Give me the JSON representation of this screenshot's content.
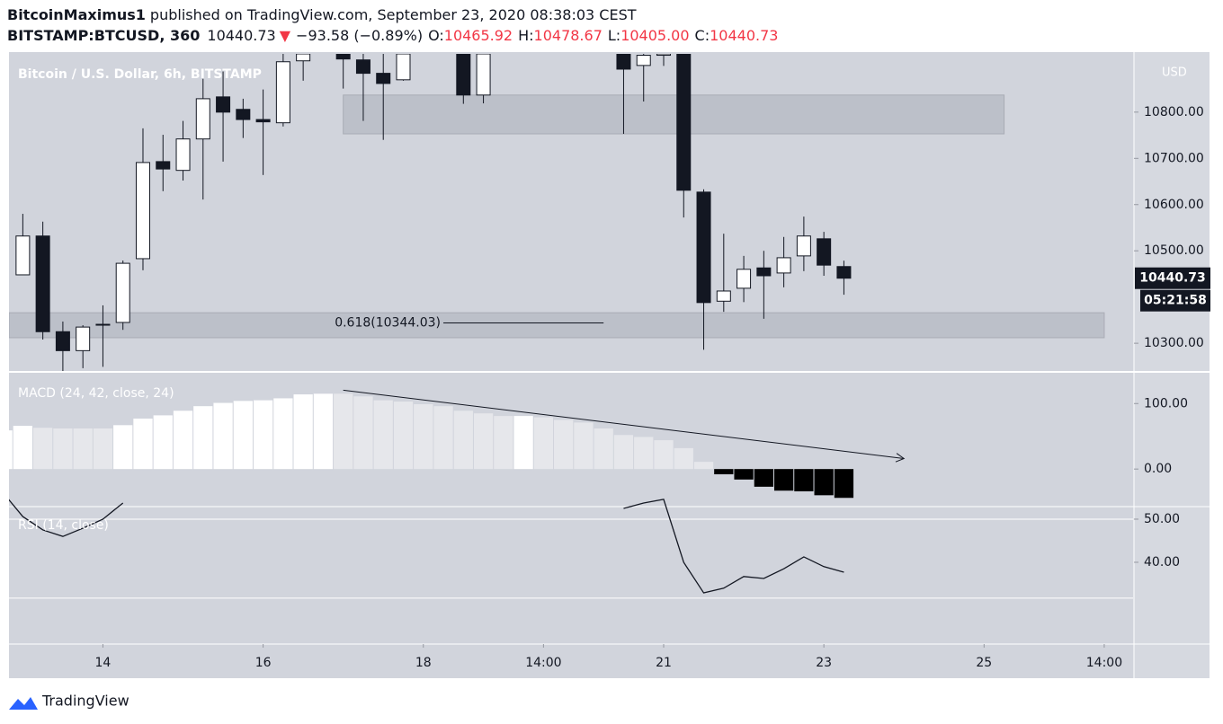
{
  "header": {
    "author": "BitcoinMaximus1",
    "published": "published on TradingView.com, September 23, 2020 08:38:03 CEST",
    "symbol": "BITSTAMP:BTCUSD, 360",
    "price": "10440.73",
    "arrow": "▼",
    "change": "−93.58 (−0.89%)",
    "quote": [
      {
        "label": "O:",
        "value": "10465.92"
      },
      {
        "label": "H:",
        "value": "10478.67"
      },
      {
        "label": "L:",
        "value": "10405.00"
      },
      {
        "label": "C:",
        "value": "10440.73"
      }
    ]
  },
  "footer": {
    "brand": "TradingView"
  },
  "chart_data": [
    {
      "type": "candlestick",
      "title": "Bitcoin / U.S. Dollar, 6h, BITSTAMP",
      "currency": "USD",
      "x": [
        1,
        2,
        3,
        4,
        5,
        6,
        7,
        8,
        9,
        10,
        11,
        12,
        13,
        14,
        15,
        17,
        18,
        19,
        20,
        23,
        24,
        31,
        32,
        33,
        34,
        35,
        36,
        37,
        38,
        39,
        40,
        41,
        42
      ],
      "open": [
        10448,
        10532,
        10325,
        10284,
        10341,
        10345,
        10483,
        10693,
        10674,
        10742,
        10833,
        10806,
        10784,
        10777,
        10911,
        10926,
        10913,
        10884,
        10870,
        10926,
        10837,
        10926,
        10901,
        10923,
        10926,
        10627,
        10391,
        10419,
        10463,
        10452,
        10489,
        10526,
        10465.92
      ],
      "high": [
        10580,
        10563,
        10347,
        10339,
        10382,
        10479,
        10765,
        10751,
        10781,
        10872,
        10888,
        10829,
        10849,
        10926,
        10930,
        10930,
        10930,
        10930,
        10930,
        10930,
        10930,
        10930,
        10930,
        10930,
        10930,
        10633,
        10537,
        10489,
        10500,
        10530,
        10574,
        10541,
        10478.67
      ],
      "low": [
        10448,
        10308,
        10240,
        10246,
        10249,
        10329,
        10458,
        10629,
        10652,
        10611,
        10693,
        10744,
        10664,
        10769,
        10868,
        10851,
        10781,
        10740,
        10868,
        10818,
        10819,
        10753,
        10823,
        10900,
        10572,
        10286,
        10368,
        10389,
        10353,
        10421,
        10456,
        10446,
        10405
      ],
      "close": [
        10532,
        10325,
        10284,
        10335,
        10341,
        10473,
        10691,
        10677,
        10742,
        10829,
        10800,
        10784,
        10779,
        10909,
        10926,
        10915,
        10884,
        10862,
        10926,
        10837,
        10926,
        10893,
        10923,
        10926,
        10631,
        10388,
        10413,
        10460,
        10446,
        10485,
        10532,
        10469,
        10440.73
      ],
      "up_color": "#ffffff",
      "down_color": "#131722",
      "xlim": [
        0.31,
        56.44
      ],
      "xticks": [
        {
          "value": 5,
          "label": "14"
        },
        {
          "value": 13,
          "label": "16"
        },
        {
          "value": 21,
          "label": "18"
        },
        {
          "value": 27,
          "label": "14:00"
        },
        {
          "value": 33,
          "label": "21"
        },
        {
          "value": 41,
          "label": "23"
        },
        {
          "value": 49,
          "label": "25"
        },
        {
          "value": 55,
          "label": "14:00"
        }
      ],
      "ylim": [
        10240,
        10926
      ],
      "yticks": [
        {
          "value": 10300,
          "label": "10300.00"
        },
        {
          "value": 10500,
          "label": "10500.00"
        },
        {
          "value": 10600,
          "label": "10600.00"
        },
        {
          "value": 10700,
          "label": "10700.00"
        },
        {
          "value": 10800,
          "label": "10800.00"
        }
      ],
      "zones": [
        {
          "from": 10753,
          "to": 10837,
          "x": [
            17,
            50
          ]
        },
        {
          "from": 10312,
          "to": 10366,
          "x": [
            0.31,
            55
          ]
        }
      ],
      "fib": {
        "label": "0.618(10344.03)",
        "level": 10344.03,
        "x": [
          22,
          30
        ]
      },
      "last_price": 10440.73,
      "countdown": "05:21:58"
    },
    {
      "type": "bar",
      "title": "MACD (24, 42, close, 24)",
      "x": [
        0,
        1,
        2,
        3,
        4,
        5,
        6,
        7,
        8,
        9,
        10,
        11,
        12,
        13,
        14,
        15,
        16,
        17,
        18,
        19,
        20,
        21,
        22,
        23,
        24,
        25,
        26,
        27,
        28,
        29,
        30,
        31,
        32,
        33,
        34,
        35,
        36,
        37,
        38,
        39,
        40,
        41,
        42
      ],
      "values": [
        59,
        66,
        63,
        62,
        62,
        62,
        67,
        77,
        82,
        89,
        96,
        101,
        104,
        105,
        108,
        114,
        115,
        115,
        111,
        105,
        103,
        99,
        96,
        89,
        85,
        81,
        81,
        79,
        75,
        71,
        62,
        52,
        49,
        44,
        32,
        11,
        -8,
        -16,
        -27,
        -33,
        -34,
        -40,
        -44
      ],
      "bar_colors": [
        "#ffffff",
        "#ffffff",
        "#e6e7eb",
        "#e6e7eb",
        "#e6e7eb",
        "#e6e7eb",
        "#ffffff",
        "#ffffff",
        "#ffffff",
        "#ffffff",
        "#ffffff",
        "#ffffff",
        "#ffffff",
        "#ffffff",
        "#ffffff",
        "#ffffff",
        "#ffffff",
        "#e6e7eb",
        "#e6e7eb",
        "#e6e7eb",
        "#e6e7eb",
        "#e6e7eb",
        "#e6e7eb",
        "#e6e7eb",
        "#e6e7eb",
        "#e6e7eb",
        "#ffffff",
        "#e6e7eb",
        "#e6e7eb",
        "#e6e7eb",
        "#e6e7eb",
        "#e6e7eb",
        "#e6e7eb",
        "#e6e7eb",
        "#e6e7eb",
        "#e6e7eb",
        "#000000",
        "#000000",
        "#000000",
        "#000000",
        "#000000",
        "#000000",
        "#000000"
      ],
      "ylim": [
        -56,
        147
      ],
      "yticks": [
        {
          "value": 0,
          "label": "0.00"
        },
        {
          "value": 100,
          "label": "100.00"
        }
      ],
      "trendline": {
        "x": [
          17,
          45
        ],
        "values": [
          120.5,
          16
        ]
      }
    },
    {
      "type": "line",
      "title": "RSI (14, close)",
      "color": "#131722",
      "x": [
        0,
        1,
        2,
        3,
        4,
        5,
        6,
        7,
        8,
        9,
        10,
        11,
        12,
        13,
        14,
        15,
        16,
        17,
        18,
        19,
        20,
        21,
        22,
        23,
        24,
        25,
        26,
        27,
        28,
        29,
        30,
        31,
        32,
        33,
        34,
        35,
        36,
        37,
        38,
        39,
        40,
        41,
        42
      ],
      "values": [
        56.2,
        50.6,
        47.5,
        46,
        47.9,
        50,
        53.75,
        null,
        null,
        null,
        null,
        null,
        null,
        null,
        null,
        null,
        null,
        null,
        null,
        null,
        null,
        null,
        null,
        null,
        null,
        null,
        null,
        null,
        null,
        null,
        null,
        52.5,
        53.75,
        54.6,
        40,
        32.9,
        34,
        36.7,
        36.25,
        38.5,
        41.25,
        39,
        37.7
      ],
      "ylim": [
        21.25,
        52.7
      ],
      "yticks": [
        {
          "value": 50,
          "label": "50.00"
        },
        {
          "value": 40,
          "label": "40.00"
        }
      ],
      "bands": [
        50,
        31.7
      ]
    }
  ]
}
